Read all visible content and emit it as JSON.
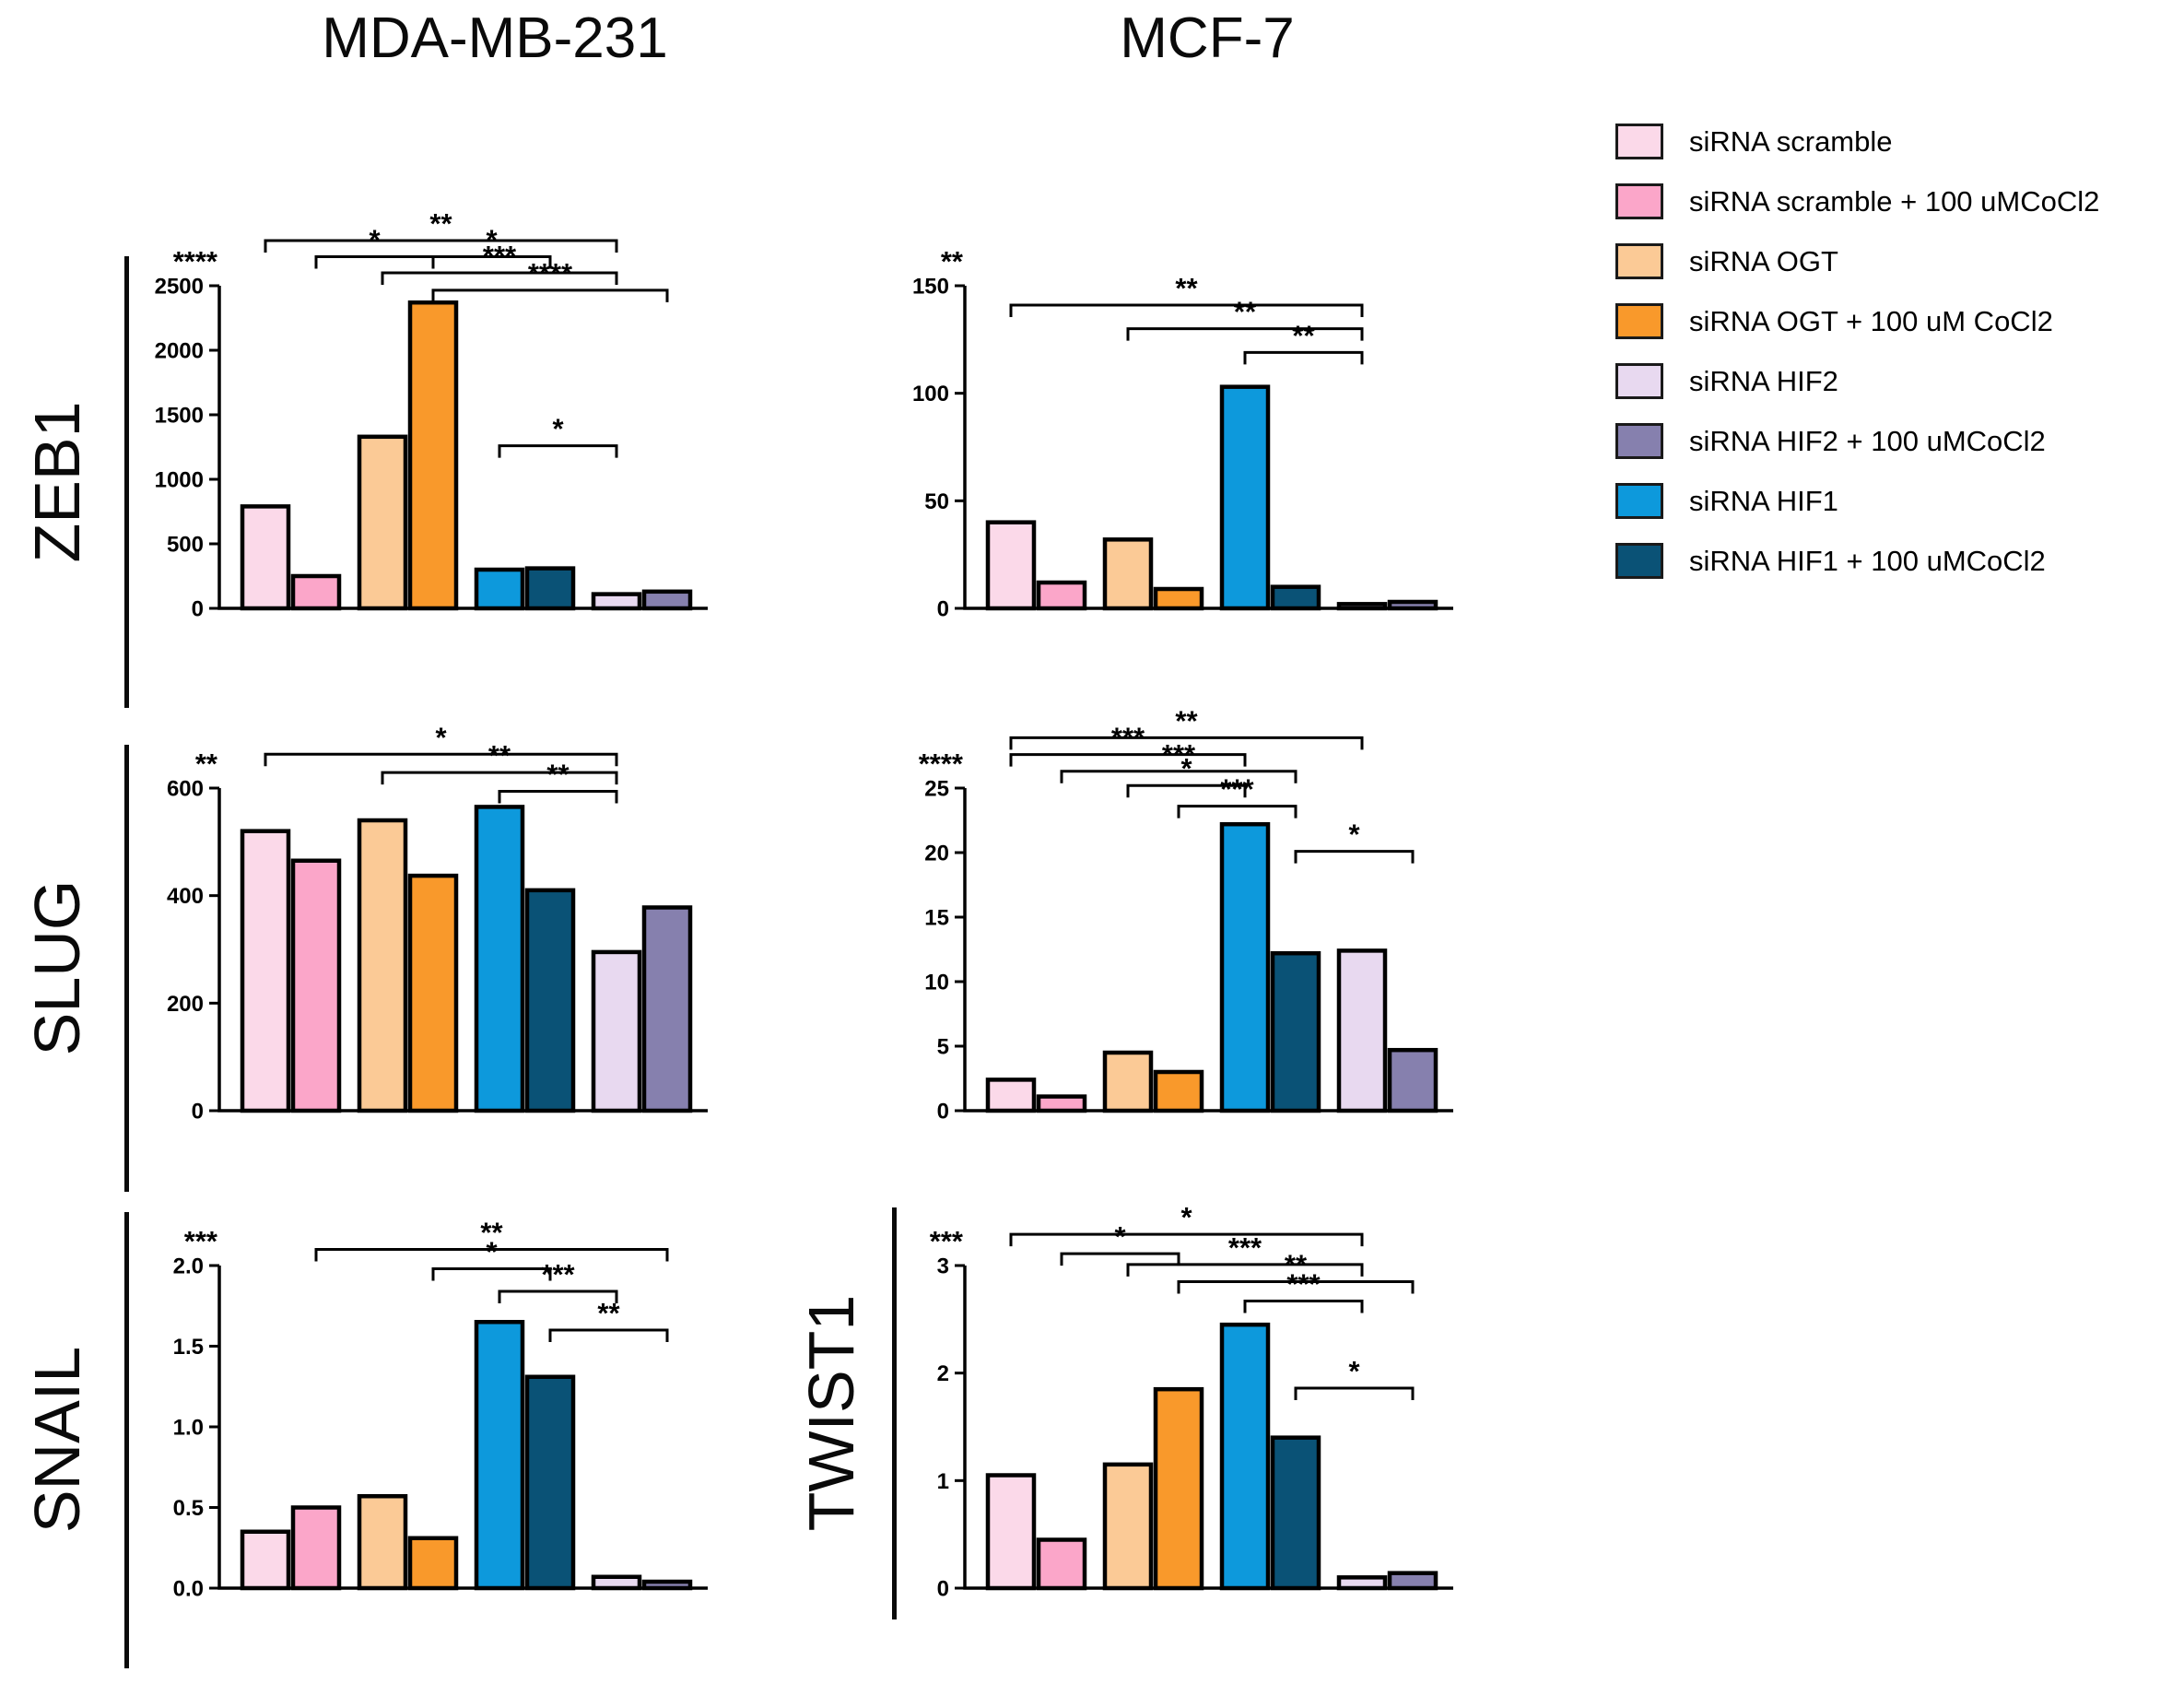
{
  "titles": {
    "left": "MDA-MB-231",
    "right": "MCF-7"
  },
  "legend": {
    "items": [
      {
        "label": "siRNA scramble",
        "color": "#FBD9E9"
      },
      {
        "label": "siRNA scramble + 100 uMCoCl2",
        "color": "#FBA6C9"
      },
      {
        "label": "siRNA OGT",
        "color": "#FBCA96"
      },
      {
        "label": "siRNA OGT + 100 uM CoCl2",
        "color": "#F9992B"
      },
      {
        "label": "siRNA HIF2",
        "color": "#E8D9F0"
      },
      {
        "label": "siRNA HIF2 + 100 uMCoCl2",
        "color": "#8680AE"
      },
      {
        "label": "siRNA HIF1",
        "color": "#0D99DC"
      },
      {
        "label": "siRNA HIF1 + 100 uMCoCl2",
        "color": "#0A5276"
      }
    ]
  },
  "bar_colors_plot_order": [
    "#FBD9E9",
    "#FBA6C9",
    "#FBCA96",
    "#F9992B",
    "#0D99DC",
    "#0A5276",
    "#E8D9F0",
    "#8680AE"
  ],
  "chart_data": [
    {
      "type": "bar",
      "gene": "ZEB1",
      "cell_line": "MDA-MB-231",
      "overall_significance": "****",
      "ylim": [
        0,
        2500
      ],
      "yticks": [
        "0",
        "500",
        "1000",
        "1500",
        "2000",
        "2500"
      ],
      "grid": false,
      "categories": [
        "siRNA scramble",
        "siRNA scramble + 100 uMCoCl2",
        "siRNA OGT",
        "siRNA OGT + 100 uM CoCl2",
        "siRNA HIF1",
        "siRNA HIF1 + 100 uMCoCl2",
        "siRNA HIF2",
        "siRNA HIF2 + 100 uMCoCl2"
      ],
      "values": [
        790,
        250,
        1330,
        2370,
        300,
        310,
        110,
        130
      ],
      "brackets": [
        {
          "from": 0,
          "to": 6,
          "label": "**",
          "y": 2850
        },
        {
          "from": 1,
          "to": 3,
          "label": "*",
          "y": 2725
        },
        {
          "from": 3,
          "to": 5,
          "label": "*",
          "y": 2725
        },
        {
          "from": 2,
          "to": 6,
          "label": "***",
          "y": 2600
        },
        {
          "from": 3,
          "to": 7,
          "label": "****",
          "y": 2465
        },
        {
          "from": 4,
          "to": 6,
          "label": "*",
          "y": 1260
        }
      ]
    },
    {
      "type": "bar",
      "gene": "ZEB1",
      "cell_line": "MCF-7",
      "overall_significance": "**",
      "ylim": [
        0,
        150
      ],
      "yticks": [
        "0",
        "50",
        "100",
        "150"
      ],
      "grid": false,
      "categories": [
        "siRNA scramble",
        "siRNA scramble + 100 uMCoCl2",
        "siRNA OGT",
        "siRNA OGT + 100 uM CoCl2",
        "siRNA HIF1",
        "siRNA HIF1 + 100 uMCoCl2",
        "siRNA HIF2",
        "siRNA HIF2 + 100 uMCoCl2"
      ],
      "values": [
        40,
        12,
        32,
        9,
        103,
        10,
        2,
        3
      ],
      "brackets": [
        {
          "from": 0,
          "to": 6,
          "label": "**",
          "y": 141
        },
        {
          "from": 2,
          "to": 6,
          "label": "**",
          "y": 130
        },
        {
          "from": 4,
          "to": 6,
          "label": "**",
          "y": 119
        }
      ]
    },
    {
      "type": "bar",
      "gene": "SLUG",
      "cell_line": "MDA-MB-231",
      "overall_significance": "**",
      "ylim": [
        0,
        600
      ],
      "yticks": [
        "0",
        "200",
        "400",
        "600"
      ],
      "grid": false,
      "categories": [
        "siRNA scramble",
        "siRNA scramble + 100 uMCoCl2",
        "siRNA OGT",
        "siRNA OGT + 100 uM CoCl2",
        "siRNA HIF1",
        "siRNA HIF1 + 100 uMCoCl2",
        "siRNA HIF2",
        "siRNA HIF2 + 100 uMCoCl2"
      ],
      "values": [
        520,
        465,
        540,
        437,
        565,
        410,
        295,
        378
      ],
      "brackets": [
        {
          "from": 0,
          "to": 6,
          "label": "*",
          "y": 663
        },
        {
          "from": 2,
          "to": 6,
          "label": "**",
          "y": 629
        },
        {
          "from": 4,
          "to": 6,
          "label": "**",
          "y": 594
        }
      ]
    },
    {
      "type": "bar",
      "gene": "SLUG",
      "cell_line": "MCF-7",
      "overall_significance": "****",
      "ylim": [
        0,
        25
      ],
      "yticks": [
        "0",
        "5",
        "10",
        "15",
        "20",
        "25"
      ],
      "grid": false,
      "categories": [
        "siRNA scramble",
        "siRNA scramble + 100 uMCoCl2",
        "siRNA OGT",
        "siRNA OGT + 100 uM CoCl2",
        "siRNA HIF1",
        "siRNA HIF1 + 100 uMCoCl2",
        "siRNA HIF2",
        "siRNA HIF2 + 100 uMCoCl2"
      ],
      "values": [
        2.4,
        1.1,
        4.5,
        3.0,
        22.2,
        12.2,
        12.4,
        4.7
      ],
      "brackets": [
        {
          "from": 0,
          "to": 6,
          "label": "**",
          "y": 28.9
        },
        {
          "from": 0,
          "to": 4,
          "label": "***",
          "y": 27.6
        },
        {
          "from": 1,
          "to": 5,
          "label": "***",
          "y": 26.3
        },
        {
          "from": 2,
          "to": 4,
          "label": "*",
          "y": 25.2
        },
        {
          "from": 3,
          "to": 5,
          "label": "***",
          "y": 23.6
        },
        {
          "from": 5,
          "to": 7,
          "label": "*",
          "y": 20.1
        }
      ]
    },
    {
      "type": "bar",
      "gene": "SNAIL",
      "cell_line": "MDA-MB-231",
      "overall_significance": "***",
      "ylim": [
        0,
        2.0
      ],
      "yticks": [
        "0.0",
        "0.5",
        "1.0",
        "1.5",
        "2.0"
      ],
      "grid": false,
      "categories": [
        "siRNA scramble",
        "siRNA scramble + 100 uMCoCl2",
        "siRNA OGT",
        "siRNA OGT + 100 uM CoCl2",
        "siRNA HIF1",
        "siRNA HIF1 + 100 uMCoCl2",
        "siRNA HIF2",
        "siRNA HIF2 + 100 uMCoCl2"
      ],
      "values": [
        0.35,
        0.5,
        0.57,
        0.31,
        1.65,
        1.31,
        0.07,
        0.04
      ],
      "brackets": [
        {
          "from": 1,
          "to": 7,
          "label": "**",
          "y": 2.1
        },
        {
          "from": 3,
          "to": 5,
          "label": "*",
          "y": 1.98
        },
        {
          "from": 4,
          "to": 6,
          "label": "***",
          "y": 1.84
        },
        {
          "from": 5,
          "to": 7,
          "label": "**",
          "y": 1.6
        }
      ]
    },
    {
      "type": "bar",
      "gene": "TWIST1",
      "cell_line": "MCF-7",
      "overall_significance": "***",
      "ylim": [
        0,
        3
      ],
      "yticks": [
        "0",
        "1",
        "2",
        "3"
      ],
      "grid": false,
      "categories": [
        "siRNA scramble",
        "siRNA scramble + 100 uMCoCl2",
        "siRNA OGT",
        "siRNA OGT + 100 uM CoCl2",
        "siRNA HIF1",
        "siRNA HIF1 + 100 uMCoCl2",
        "siRNA HIF2",
        "siRNA HIF2 + 100 uMCoCl2"
      ],
      "values": [
        1.05,
        0.45,
        1.15,
        1.85,
        2.45,
        1.4,
        0.1,
        0.14
      ],
      "brackets": [
        {
          "from": 0,
          "to": 6,
          "label": "*",
          "y": 3.29
        },
        {
          "from": 1,
          "to": 3,
          "label": "*",
          "y": 3.11
        },
        {
          "from": 2,
          "to": 6,
          "label": "***",
          "y": 3.01
        },
        {
          "from": 3,
          "to": 7,
          "label": "**",
          "y": 2.85
        },
        {
          "from": 4,
          "to": 6,
          "label": "***",
          "y": 2.67
        },
        {
          "from": 5,
          "to": 7,
          "label": "*",
          "y": 1.86
        }
      ]
    }
  ]
}
